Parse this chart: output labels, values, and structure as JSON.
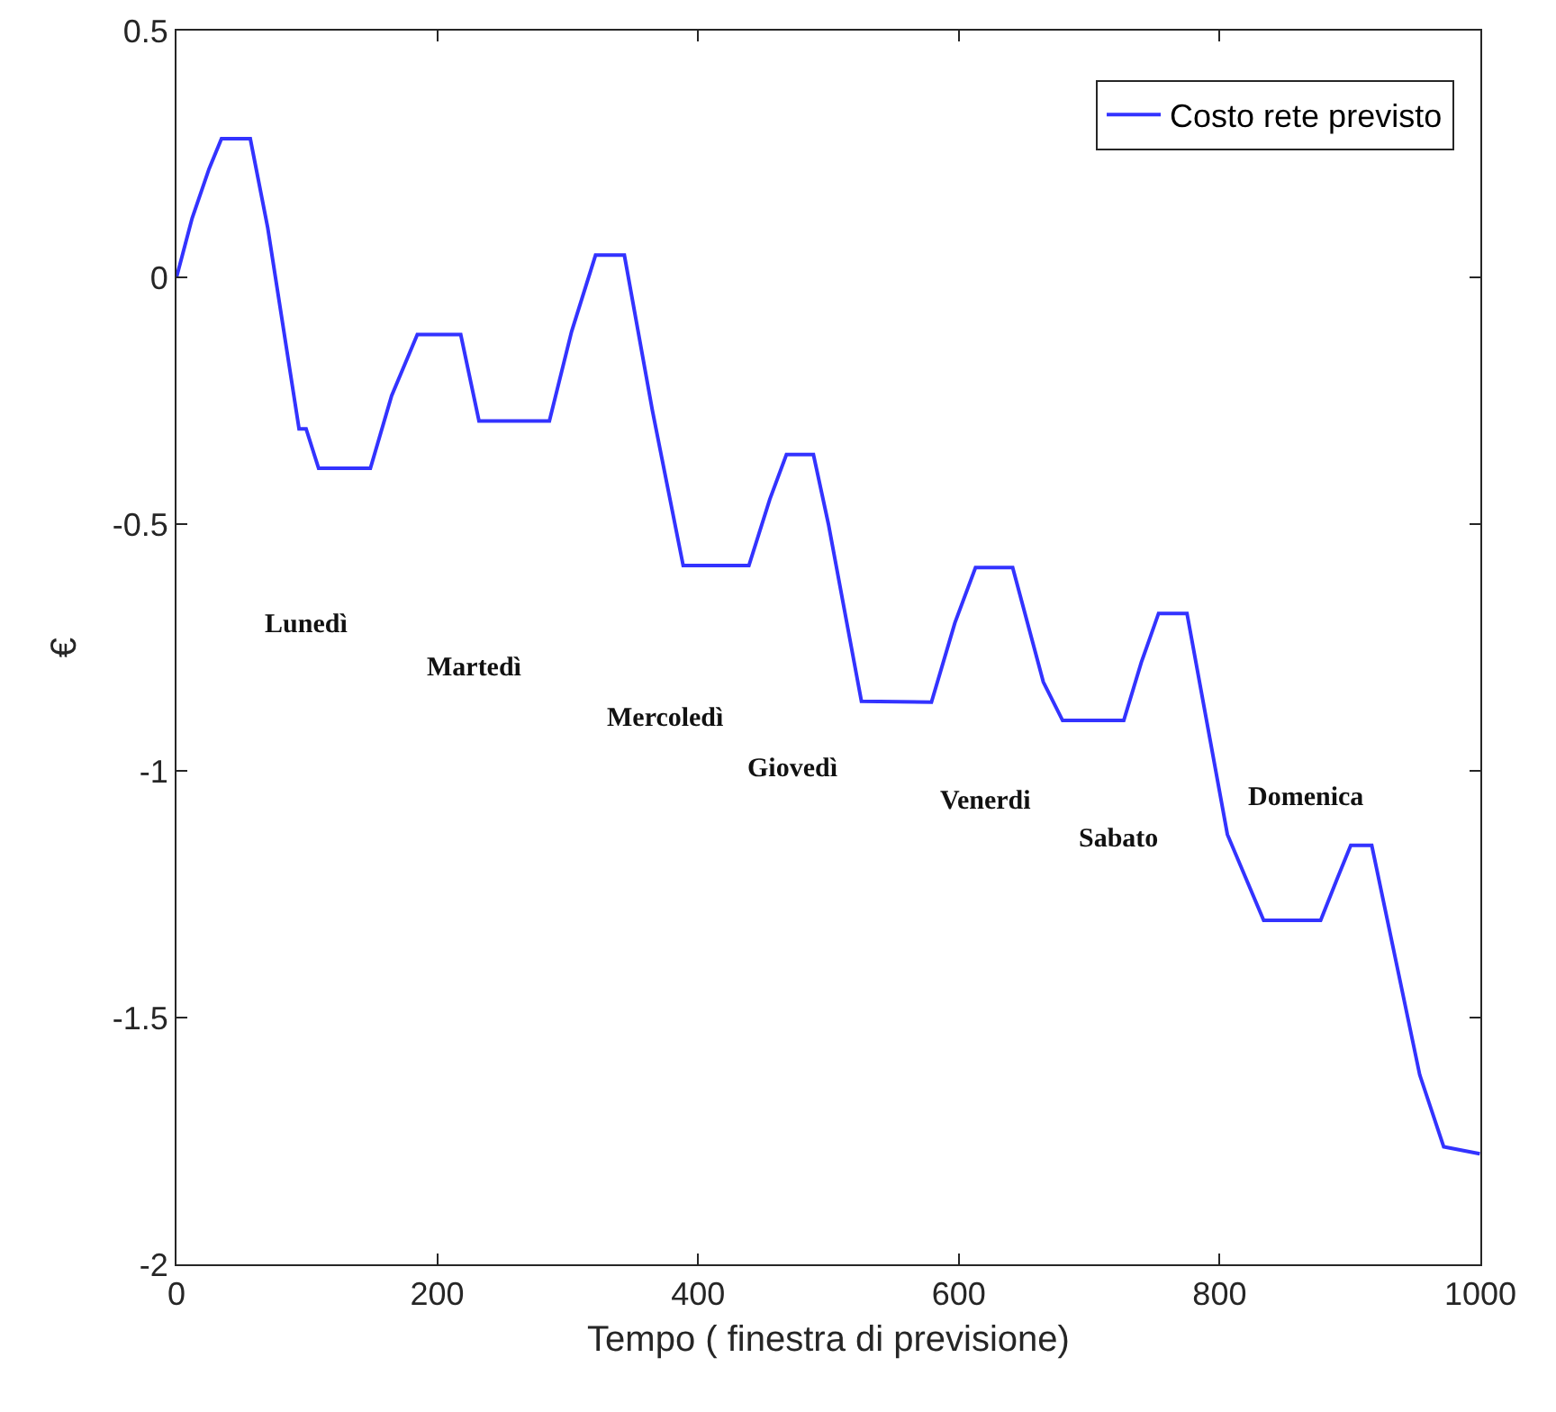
{
  "chart_data": {
    "type": "line",
    "xlabel": "Tempo ( finestra di previsione)",
    "ylabel": "€",
    "xlim": [
      0,
      1000
    ],
    "xticks": [
      0,
      200,
      400,
      600,
      800,
      1000
    ],
    "ylim": [
      -2,
      0.5
    ],
    "yticks": [
      -2,
      -1.5,
      -1,
      -0.5,
      0,
      0.5
    ],
    "grid": false,
    "legend": "top right",
    "line_style": "solid",
    "marker": "none",
    "x": [
      0,
      12,
      25,
      34.5,
      56.6,
      70,
      94,
      99.4,
      109,
      148.7,
      165,
      184.7,
      218,
      232,
      286,
      303,
      321.4,
      343.5,
      365,
      388.6,
      439,
      455,
      467.8,
      488.5,
      500,
      525.3,
      579,
      597,
      612.8,
      641.3,
      664.8,
      679.6,
      726.5,
      740,
      753.2,
      775,
      806,
      833.8,
      877.5,
      890,
      900.6,
      916.7,
      953.5,
      971.9,
      999.6
    ],
    "series": [
      {
        "name": "Costo rete previsto",
        "color": "#3333ff",
        "values": [
          0,
          0.12,
          0.22,
          0.281,
          0.281,
          0.1,
          -0.307,
          -0.307,
          -0.387,
          -0.387,
          -0.24,
          -0.116,
          -0.116,
          -0.291,
          -0.291,
          -0.11,
          0.045,
          0.045,
          -0.27,
          -0.584,
          -0.584,
          -0.45,
          -0.359,
          -0.359,
          -0.5,
          -0.859,
          -0.861,
          -0.7,
          -0.588,
          -0.588,
          -0.82,
          -0.898,
          -0.898,
          -0.78,
          -0.681,
          -0.681,
          -1.129,
          -1.303,
          -1.303,
          -1.22,
          -1.151,
          -1.151,
          -1.616,
          -1.762,
          -1.776
        ]
      }
    ],
    "annotations": [
      "Lunedì",
      "Martedì",
      "Mercoledì",
      "Giovedì",
      "Venerdi",
      "Sabato",
      "Domenica"
    ]
  }
}
